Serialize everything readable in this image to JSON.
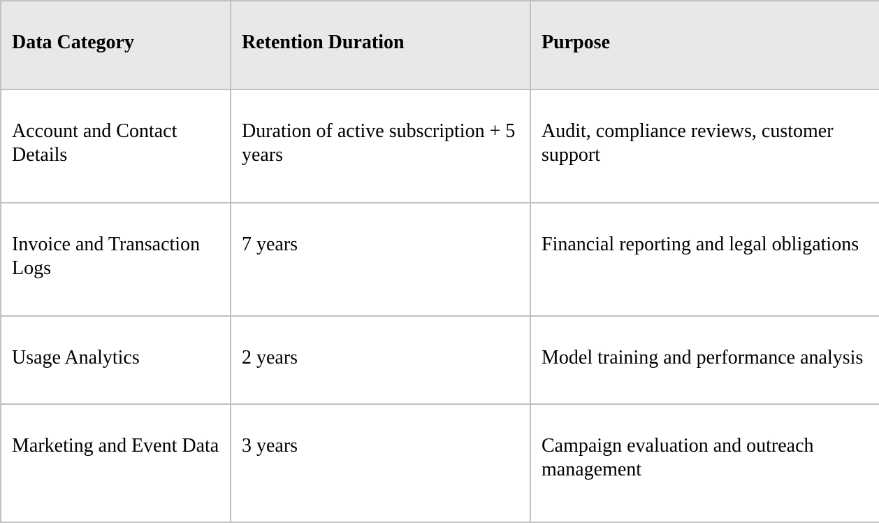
{
  "theme": {
    "header_bg": "#e8e8e8",
    "border_color": "#c1c1c1",
    "text_color": "#000000",
    "row_bg": "#ffffff"
  },
  "table": {
    "columns": [
      {
        "label": "Data Category"
      },
      {
        "label": "Retention Duration"
      },
      {
        "label": "Purpose"
      }
    ],
    "rows": [
      {
        "category": "Account and Contact Details",
        "duration": "Duration of active subscription + 5 years",
        "purpose": "Audit, compliance reviews, customer support"
      },
      {
        "category": "Invoice and Transaction Logs",
        "duration": "7 years",
        "purpose": "Financial reporting and legal obligations"
      },
      {
        "category": "Usage Analytics",
        "duration": "2 years",
        "purpose": "Model training and performance analysis"
      },
      {
        "category": "Marketing and Event Data",
        "duration": "3 years",
        "purpose": "Campaign evaluation and outreach management"
      }
    ]
  }
}
